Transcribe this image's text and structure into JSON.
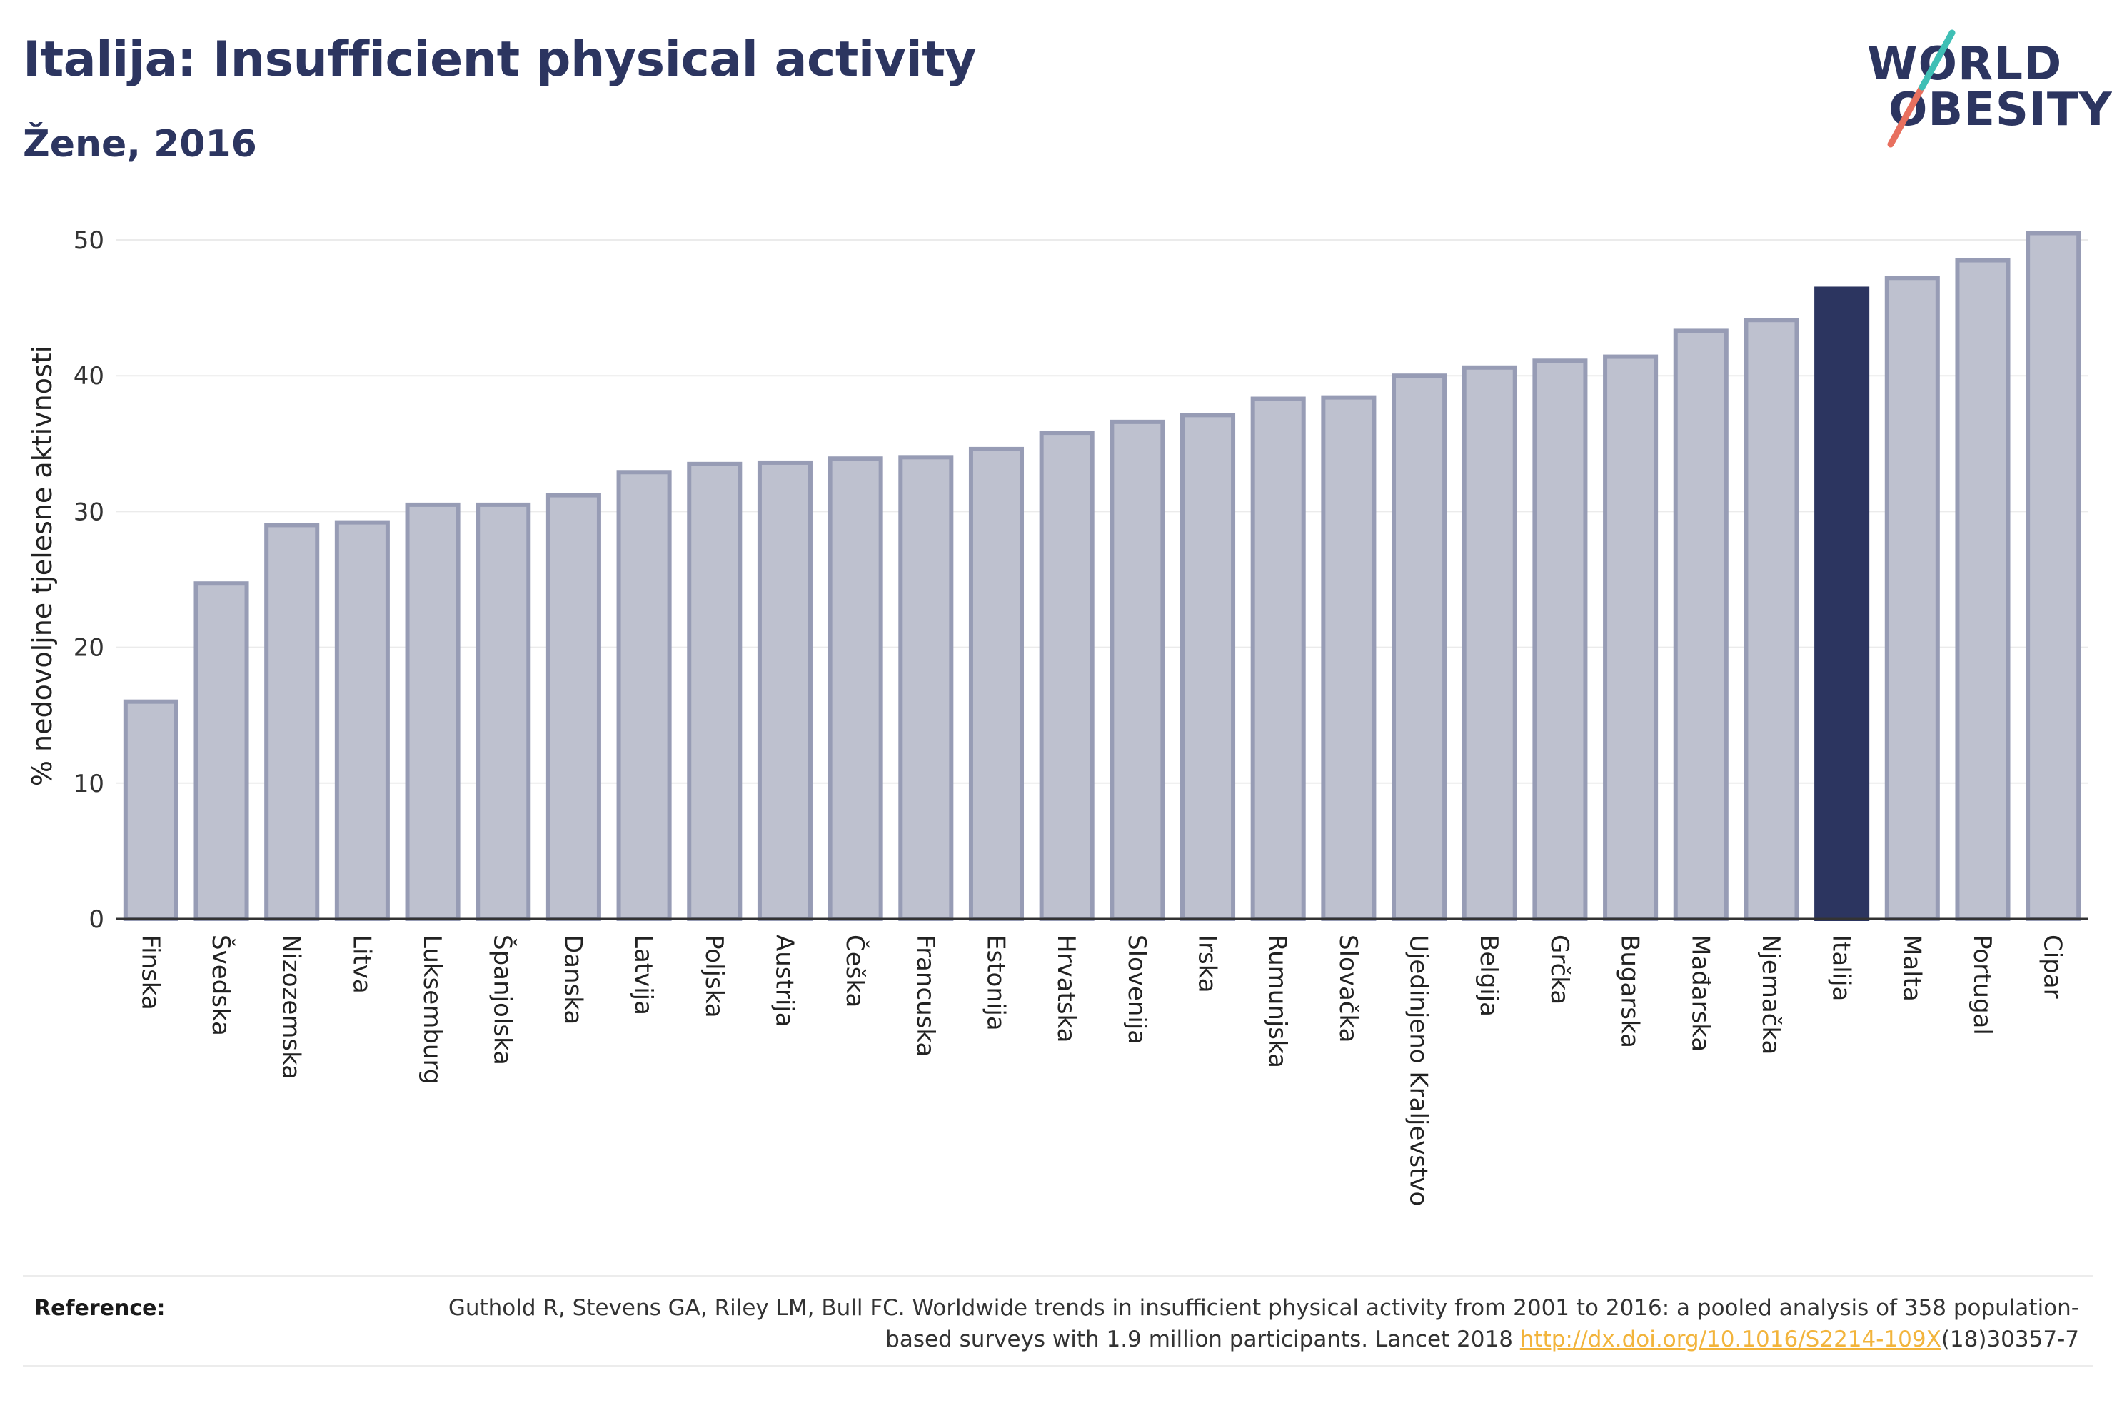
{
  "header": {
    "title": "Italija: Insufficient physical activity",
    "subtitle": "Žene, 2016"
  },
  "logo": {
    "line1": "WORLD",
    "line2": "OBESITY"
  },
  "chart_data": {
    "type": "bar",
    "title": "Italija: Insufficient physical activity",
    "subtitle": "Žene, 2016",
    "xlabel": "",
    "ylabel": "% nedovoljne tjelesne aktivnosti",
    "ylim": [
      0,
      52
    ],
    "yticks": [
      0,
      10,
      20,
      30,
      40,
      50
    ],
    "grid": true,
    "categories": [
      "Finska",
      "Švedska",
      "Nizozemska",
      "Litva",
      "Luksemburg",
      "Španjolska",
      "Danska",
      "Latvija",
      "Poljska",
      "Austrija",
      "Češka",
      "Francuska",
      "Estonija",
      "Hrvatska",
      "Slovenija",
      "Irska",
      "Rumunjska",
      "Slovačka",
      "Ujedinjeno Kraljevstvo",
      "Belgija",
      "Grčka",
      "Bugarska",
      "Mađarska",
      "Njemačka",
      "Italija",
      "Malta",
      "Portugal",
      "Cipar"
    ],
    "values": [
      16.0,
      24.7,
      29.0,
      29.2,
      30.5,
      30.5,
      31.2,
      32.9,
      33.5,
      33.6,
      33.9,
      34.0,
      34.6,
      35.8,
      36.6,
      37.1,
      38.3,
      38.4,
      40.0,
      40.6,
      41.1,
      41.4,
      43.3,
      44.1,
      46.4,
      47.2,
      48.5,
      50.5
    ],
    "highlight": "Italija",
    "colors": {
      "bar": "#bec1cf",
      "bar_border": "#979cb5",
      "highlight": "#2c3560",
      "grid": "#ebebeb",
      "axis": "#333333"
    }
  },
  "reference": {
    "label": "Reference:",
    "text": "Guthold R, Stevens GA, Riley LM, Bull FC. Worldwide trends in insufficient physical activity from 2001 to 2016: a pooled analysis of 358 population-based surveys with 1.9 million participants. Lancet 2018 ",
    "link": "http://dx.doi.org/10.1016/S2214-109X",
    "suffix": "(18)30357-7"
  }
}
